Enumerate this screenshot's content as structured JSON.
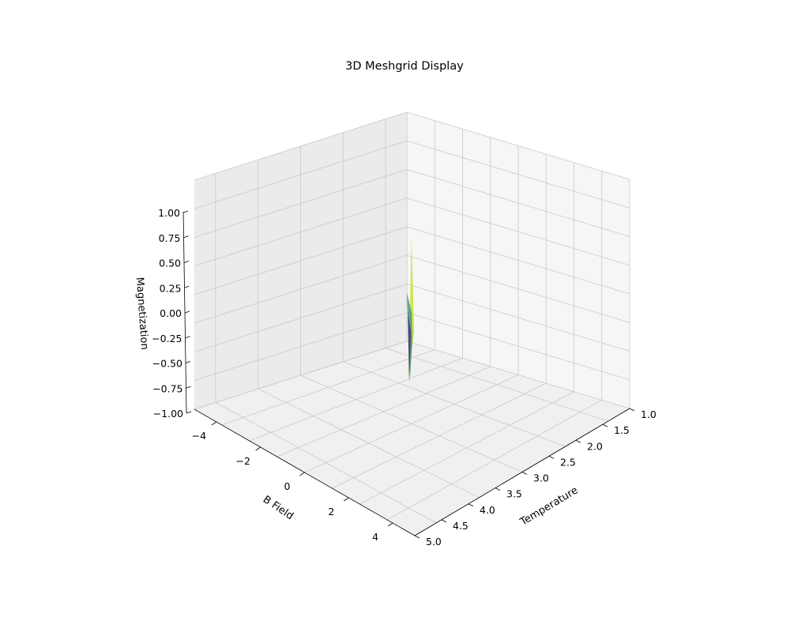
{
  "chart_data": {
    "type": "surface",
    "title": "3D Meshgrid Display",
    "xlabel": "Temperature",
    "ylabel": "B Field",
    "zlabel": "Magnetization",
    "x_ticks": [
      "1.0",
      "1.5",
      "2.0",
      "2.5",
      "3.0",
      "3.5",
      "4.0",
      "4.5",
      "5.0"
    ],
    "y_ticks": [
      "−4",
      "−2",
      "0",
      "2",
      "4"
    ],
    "z_ticks": [
      "−1.00",
      "−0.75",
      "−0.50",
      "−0.25",
      "0.00",
      "0.25",
      "0.50",
      "0.75",
      "1.00"
    ],
    "xlim": [
      1,
      5
    ],
    "ylim": [
      -5,
      5
    ],
    "zlim": [
      -1,
      1
    ],
    "grid": true,
    "colormap": "viridis",
    "surface_peak": {
      "temperature": 1.0,
      "b_field": 0,
      "magnetization_max": 1.0,
      "magnetization_min": -1.0
    }
  },
  "colors": {
    "pane_light": "#f6f6f6",
    "pane_mid": "#f0f0f0",
    "pane_dark": "#ebebeb",
    "grid": "#c9c9c9",
    "surface_high": "#c8e020",
    "surface_mid": "#3f8f8b",
    "surface_low": "#46327e"
  }
}
